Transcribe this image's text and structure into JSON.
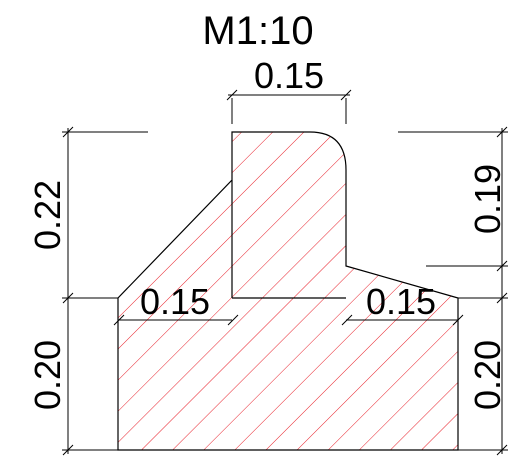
{
  "scale_label": "M1:10",
  "dimensions": {
    "top_width": "0.15",
    "left_upper_height": "0.22",
    "left_lower_height": "0.20",
    "right_upper_height": "0.19",
    "right_lower_height": "0.20",
    "left_ledge_width": "0.15",
    "right_ledge_width": "0.15"
  },
  "colors": {
    "outline": "#000000",
    "hatch": "#e8202a",
    "background": "#ffffff"
  }
}
